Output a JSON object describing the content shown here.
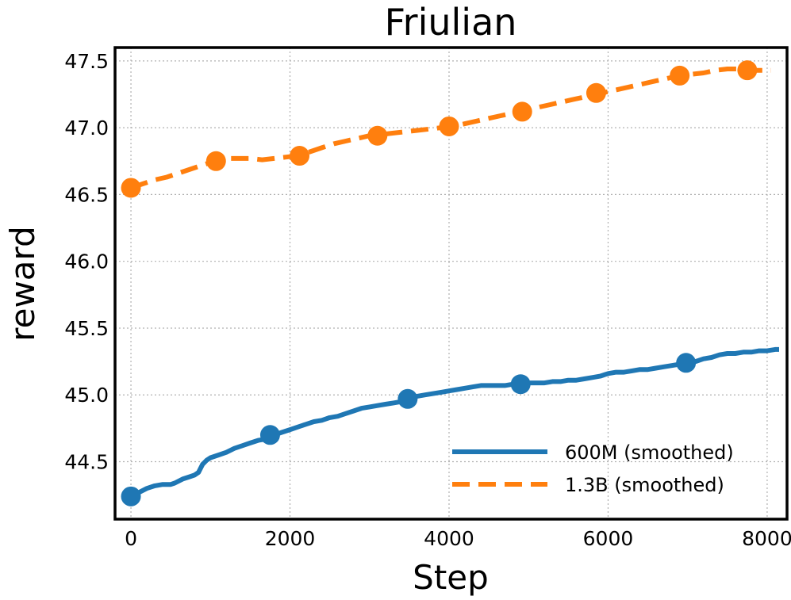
{
  "chart_data": {
    "type": "line",
    "title": "Friulian",
    "xlabel": "Step",
    "ylabel": "reward",
    "xlim": [
      -200,
      8250
    ],
    "ylim": [
      44.07,
      47.6
    ],
    "xticks": [
      0,
      2000,
      4000,
      6000,
      8000
    ],
    "xtick_labels": [
      "0",
      "2000",
      "4000",
      "6000",
      "8000"
    ],
    "yticks": [
      44.5,
      45.0,
      45.5,
      46.0,
      46.5,
      47.0,
      47.5
    ],
    "ytick_labels": [
      "44.5",
      "45.0",
      "45.5",
      "46.0",
      "46.5",
      "47.0",
      "47.5"
    ],
    "grid": true,
    "legend_position": "lower-right",
    "series": [
      {
        "name": "600M (smoothed)",
        "color": "#1f77b4",
        "style": "solid",
        "x": [
          0,
          100,
          200,
          300,
          400,
          500,
          550,
          650,
          750,
          800,
          850,
          900,
          950,
          1000,
          1100,
          1200,
          1300,
          1400,
          1500,
          1600,
          1700,
          1800,
          1900,
          2000,
          2100,
          2200,
          2300,
          2400,
          2500,
          2600,
          2700,
          2800,
          2900,
          3000,
          3100,
          3200,
          3300,
          3400,
          3500,
          3600,
          3700,
          3800,
          3900,
          4000,
          4100,
          4200,
          4300,
          4400,
          4500,
          4600,
          4700,
          4800,
          4900,
          5000,
          5100,
          5200,
          5300,
          5400,
          5500,
          5600,
          5700,
          5800,
          5900,
          6000,
          6100,
          6200,
          6300,
          6400,
          6500,
          6600,
          6700,
          6800,
          6900,
          7000,
          7100,
          7200,
          7300,
          7400,
          7500,
          7600,
          7700,
          7800,
          7900,
          8000,
          8100,
          8150
        ],
        "y": [
          44.24,
          44.27,
          44.3,
          44.32,
          44.33,
          44.33,
          44.34,
          44.37,
          44.39,
          44.4,
          44.42,
          44.48,
          44.51,
          44.53,
          44.55,
          44.57,
          44.6,
          44.62,
          44.64,
          44.66,
          44.67,
          44.7,
          44.72,
          44.74,
          44.76,
          44.78,
          44.8,
          44.81,
          44.83,
          44.84,
          44.86,
          44.88,
          44.9,
          44.91,
          44.92,
          44.93,
          44.94,
          44.95,
          44.97,
          44.99,
          45.0,
          45.01,
          45.02,
          45.03,
          45.04,
          45.05,
          45.06,
          45.07,
          45.07,
          45.07,
          45.07,
          45.08,
          45.08,
          45.09,
          45.09,
          45.09,
          45.1,
          45.1,
          45.11,
          45.11,
          45.12,
          45.13,
          45.14,
          45.16,
          45.17,
          45.17,
          45.18,
          45.19,
          45.19,
          45.2,
          45.21,
          45.22,
          45.23,
          45.24,
          45.25,
          45.27,
          45.28,
          45.3,
          45.31,
          45.31,
          45.32,
          45.32,
          45.33,
          45.33,
          45.34,
          45.34
        ],
        "markers_x": [
          0,
          1750,
          3480,
          4900,
          6980
        ],
        "markers_y": [
          44.24,
          44.7,
          44.97,
          45.08,
          45.24
        ]
      },
      {
        "name": "1.3B (smoothed)",
        "color": "#ff7f0e",
        "style": "dashed",
        "x": [
          0,
          150,
          300,
          450,
          600,
          750,
          900,
          1050,
          1200,
          1350,
          1500,
          1650,
          1800,
          1950,
          2100,
          2250,
          2400,
          2550,
          2700,
          2850,
          3000,
          3150,
          3300,
          3450,
          3600,
          3750,
          3900,
          4050,
          4200,
          4350,
          4500,
          4650,
          4800,
          4950,
          5100,
          5250,
          5400,
          5550,
          5700,
          5850,
          6000,
          6150,
          6300,
          6450,
          6600,
          6750,
          6900,
          7050,
          7200,
          7350,
          7500,
          7650,
          7800,
          7950,
          8050
        ],
        "y": [
          46.55,
          46.58,
          46.61,
          46.63,
          46.66,
          46.69,
          46.72,
          46.75,
          46.77,
          46.77,
          46.77,
          46.76,
          46.77,
          46.78,
          46.79,
          46.82,
          46.85,
          46.88,
          46.9,
          46.92,
          46.94,
          46.95,
          46.96,
          46.97,
          46.98,
          46.99,
          47.0,
          47.01,
          47.03,
          47.05,
          47.07,
          47.09,
          47.11,
          47.13,
          47.15,
          47.17,
          47.19,
          47.21,
          47.23,
          47.25,
          47.27,
          47.29,
          47.31,
          47.33,
          47.35,
          47.37,
          47.39,
          47.4,
          47.41,
          47.43,
          47.44,
          47.44,
          47.43,
          47.43,
          47.43
        ],
        "markers_x": [
          0,
          1070,
          2120,
          3100,
          4000,
          4920,
          5850,
          6900,
          7750
        ],
        "markers_y": [
          46.55,
          46.75,
          46.79,
          46.94,
          47.01,
          47.12,
          47.26,
          47.39,
          47.43
        ]
      }
    ]
  }
}
